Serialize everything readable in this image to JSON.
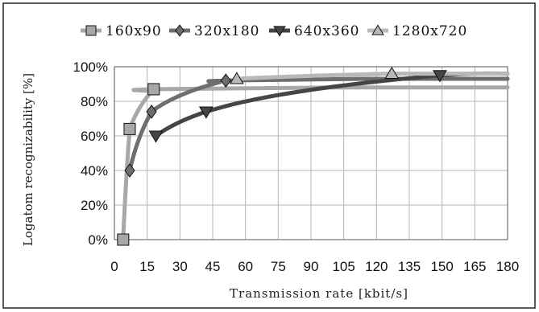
{
  "chart_data": {
    "type": "line",
    "title": "",
    "xlabel": "Transmission rate [kbit/s]",
    "ylabel": "Logatom recognizability [%]",
    "xlim": [
      0,
      180
    ],
    "ylim": [
      0,
      100
    ],
    "x_ticks": [
      0,
      15,
      30,
      45,
      60,
      75,
      90,
      105,
      120,
      135,
      150,
      165,
      180
    ],
    "x_tick_labels": [
      "0",
      "15",
      "30",
      "45",
      "60",
      "75",
      "90",
      "105",
      "120",
      "135",
      "150",
      "165",
      "180"
    ],
    "y_ticks": [
      0,
      20,
      40,
      60,
      80,
      100
    ],
    "y_tick_labels": [
      "0%",
      "20%",
      "40%",
      "60%",
      "80%",
      "100%"
    ],
    "grid": true,
    "legend_position": "top",
    "series": [
      {
        "name": "160x90",
        "marker": "square",
        "color": "#a8a8a8",
        "x": [
          4,
          7,
          18
        ],
        "y": [
          0,
          64,
          87
        ]
      },
      {
        "name": "320x180",
        "marker": "diamond",
        "color": "#6e6e6e",
        "x": [
          7,
          17,
          51
        ],
        "y": [
          40,
          74,
          92
        ]
      },
      {
        "name": "640x360",
        "marker": "triangle-down",
        "color": "#454545",
        "x": [
          19,
          42,
          149
        ],
        "y": [
          60,
          74,
          95
        ]
      },
      {
        "name": "1280x720",
        "marker": "triangle-up",
        "color": "#b8b8b8",
        "x": [
          56,
          127
        ],
        "y": [
          93,
          96
        ]
      }
    ]
  }
}
